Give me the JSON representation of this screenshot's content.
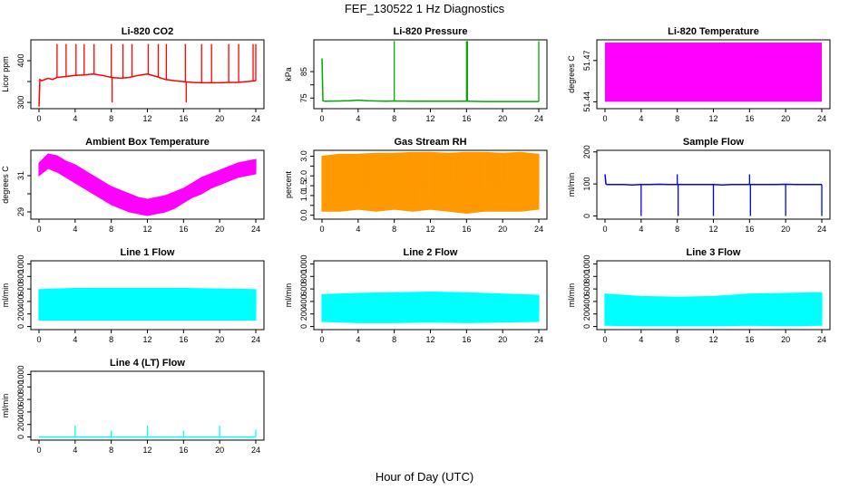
{
  "figure": {
    "title": "FEF_130522  1 Hz Diagnostics",
    "xlabel": "Hour of Day (UTC)"
  },
  "chart_data": [
    {
      "id": "co2",
      "type": "line",
      "title": "Li-820 CO2",
      "ylabel": "Licor ppm",
      "color": "#ff0000",
      "xlim": [
        0,
        24
      ],
      "ylim": [
        285,
        450
      ],
      "xticks": [
        0,
        4,
        8,
        12,
        16,
        20,
        24
      ],
      "yticks": [
        300,
        350,
        400
      ],
      "yticklabels": [
        "300",
        "",
        "400"
      ],
      "series": [
        {
          "x": [
            0,
            0.1,
            0.3,
            1,
            1.5,
            2,
            3,
            4,
            5,
            6,
            7,
            8,
            9,
            10,
            11,
            12,
            13,
            14,
            15,
            16,
            17,
            18,
            19,
            20,
            21,
            22,
            23,
            24
          ],
          "y": [
            290,
            355,
            352,
            358,
            355,
            360,
            362,
            365,
            366,
            368,
            365,
            360,
            358,
            360,
            365,
            368,
            362,
            355,
            352,
            350,
            348,
            347,
            347,
            347,
            348,
            348,
            350,
            352
          ]
        }
      ],
      "spikes": [
        {
          "x": 2.0,
          "y": 440
        },
        {
          "x": 3.0,
          "y": 440
        },
        {
          "x": 4.1,
          "y": 440
        },
        {
          "x": 5.0,
          "y": 440
        },
        {
          "x": 6.1,
          "y": 440
        },
        {
          "x": 8.0,
          "y": 440
        },
        {
          "x": 8.1,
          "y": 300
        },
        {
          "x": 9.3,
          "y": 440
        },
        {
          "x": 10.3,
          "y": 440
        },
        {
          "x": 12.1,
          "y": 440
        },
        {
          "x": 13.2,
          "y": 440
        },
        {
          "x": 14.1,
          "y": 440
        },
        {
          "x": 16.2,
          "y": 440
        },
        {
          "x": 16.3,
          "y": 300
        },
        {
          "x": 18.0,
          "y": 440
        },
        {
          "x": 19.1,
          "y": 440
        },
        {
          "x": 21.0,
          "y": 440
        },
        {
          "x": 22.1,
          "y": 440
        },
        {
          "x": 23.7,
          "y": 440
        },
        {
          "x": 24.0,
          "y": 440
        }
      ]
    },
    {
      "id": "pressure",
      "type": "line",
      "title": "Li-820 Pressure",
      "ylabel": "kPa",
      "color": "#00aa00",
      "xlim": [
        0,
        24
      ],
      "ylim": [
        71,
        97
      ],
      "xticks": [
        0,
        4,
        8,
        12,
        16,
        20,
        24
      ],
      "yticks": [
        75,
        80,
        85
      ],
      "yticklabels": [
        "75",
        "",
        "85"
      ],
      "series": [
        {
          "x": [
            0,
            0.1,
            0.3,
            2,
            3,
            4,
            5,
            6,
            7,
            8,
            10,
            12,
            14,
            16,
            18,
            20,
            22,
            24
          ],
          "y": [
            90,
            74,
            73.8,
            73.9,
            74.0,
            74.2,
            74.0,
            73.9,
            73.8,
            73.9,
            73.8,
            73.8,
            73.8,
            73.8,
            73.7,
            73.7,
            73.7,
            73.7
          ]
        }
      ],
      "spikes": [
        {
          "x": 8.0,
          "y": 96.5
        },
        {
          "x": 16.0,
          "y": 96.5
        },
        {
          "x": 16.1,
          "y": 96.5
        },
        {
          "x": 24.0,
          "y": 96.5
        }
      ]
    },
    {
      "id": "licor_temp",
      "type": "area",
      "title": "Li-820 Temperature",
      "ylabel": "degrees C",
      "color": "#ff00ff",
      "xlim": [
        0,
        24
      ],
      "ylim": [
        51.435,
        51.485
      ],
      "xticks": [
        0,
        4,
        8,
        12,
        16,
        20,
        24
      ],
      "yticks": [
        51.44,
        51.47
      ],
      "yticklabels": [
        "51.44",
        "51.47"
      ],
      "band": {
        "x0": 0,
        "x1": 24,
        "ymin": 51.44,
        "ymax": 51.483
      }
    },
    {
      "id": "box_temp",
      "type": "area",
      "title": "Ambient Box Temperature",
      "ylabel": "degrees C",
      "color": "#ff00ff",
      "xlim": [
        0,
        24
      ],
      "ylim": [
        28.6,
        32.4
      ],
      "xticks": [
        0,
        4,
        8,
        12,
        16,
        20,
        24
      ],
      "yticks": [
        29,
        30,
        31
      ],
      "yticklabels": [
        "29",
        "",
        "31"
      ],
      "x": [
        0,
        1,
        2,
        3,
        4,
        5,
        6,
        7,
        8,
        9,
        10,
        11,
        12,
        13,
        14,
        15,
        16,
        17,
        18,
        19,
        20,
        21,
        22,
        23,
        24
      ],
      "ymax": [
        31.7,
        32.2,
        32.1,
        31.8,
        31.6,
        31.3,
        31.0,
        30.7,
        30.4,
        30.2,
        30.0,
        29.8,
        29.7,
        29.8,
        29.9,
        30.1,
        30.3,
        30.6,
        30.9,
        31.1,
        31.3,
        31.5,
        31.7,
        31.8,
        31.9
      ],
      "ymin": [
        31.0,
        31.4,
        31.2,
        30.9,
        30.6,
        30.3,
        30.0,
        29.7,
        29.4,
        29.2,
        29.0,
        28.9,
        28.8,
        28.9,
        29.0,
        29.2,
        29.5,
        29.8,
        30.0,
        30.3,
        30.5,
        30.7,
        30.9,
        31.0,
        31.1
      ]
    },
    {
      "id": "rh",
      "type": "area",
      "title": "Gas Stream RH",
      "ylabel": "percent",
      "color": "#ff9900",
      "xlim": [
        0,
        24
      ],
      "ylim": [
        -0.2,
        3.3
      ],
      "xticks": [
        0,
        4,
        8,
        12,
        16,
        20,
        24
      ],
      "yticks": [
        0,
        0.5,
        1,
        1.5,
        2,
        2.5,
        3
      ],
      "yticklabels": [
        "0.0",
        "",
        "1.0",
        "1.5",
        "2.0",
        "",
        "3.0"
      ],
      "x": [
        0,
        2,
        4,
        6,
        8,
        10,
        12,
        14,
        16,
        18,
        20,
        22,
        24
      ],
      "ymax": [
        3.0,
        3.1,
        3.1,
        3.15,
        3.15,
        3.2,
        3.2,
        3.15,
        3.2,
        3.2,
        3.15,
        3.2,
        3.1
      ],
      "ymin": [
        0.2,
        0.2,
        0.3,
        0.2,
        0.3,
        0.2,
        0.3,
        0.2,
        0.1,
        0.2,
        0.2,
        0.2,
        0.3
      ]
    },
    {
      "id": "sample_flow",
      "type": "line",
      "title": "Sample Flow",
      "ylabel": "ml/min",
      "color": "#0000ff",
      "xlim": [
        0,
        24
      ],
      "ylim": [
        -10,
        205
      ],
      "xticks": [
        0,
        4,
        8,
        12,
        16,
        20,
        24
      ],
      "yticks": [
        0,
        100,
        200
      ],
      "yticklabels": [
        "0",
        "100",
        "200"
      ],
      "series": [
        {
          "x": [
            0,
            0.1,
            0.2,
            1,
            2,
            3,
            4,
            5,
            6,
            7,
            8,
            9,
            10,
            11,
            12,
            13,
            14,
            15,
            16,
            17,
            18,
            19,
            20,
            21,
            22,
            23,
            24
          ],
          "y": [
            130,
            100,
            98,
            98,
            98,
            97,
            98,
            98,
            99,
            98,
            98,
            98,
            98,
            98,
            98,
            97,
            98,
            98,
            98,
            98,
            98,
            98,
            99,
            98,
            98,
            98,
            98
          ]
        }
      ],
      "spikes": [
        {
          "x": 4.0,
          "y": 0
        },
        {
          "x": 8.0,
          "y": 130
        },
        {
          "x": 8.1,
          "y": 0
        },
        {
          "x": 12.0,
          "y": 0
        },
        {
          "x": 16.0,
          "y": 130
        },
        {
          "x": 16.1,
          "y": 0
        },
        {
          "x": 20.0,
          "y": 0
        },
        {
          "x": 24.0,
          "y": 0
        }
      ]
    },
    {
      "id": "line1",
      "type": "area",
      "title": "Line 1 Flow",
      "ylabel": "ml/min",
      "color": "#00ffff",
      "xlim": [
        0,
        24
      ],
      "ylim": [
        -50,
        1050
      ],
      "xticks": [
        0,
        4,
        8,
        12,
        16,
        20,
        24
      ],
      "yticks": [
        0,
        200,
        400,
        600,
        800,
        1000
      ],
      "yticklabels": [
        "0",
        "200",
        "400",
        "600",
        "800",
        "1000"
      ],
      "x": [
        0,
        4,
        8,
        12,
        16,
        20,
        24
      ],
      "ymax": [
        590,
        610,
        610,
        610,
        610,
        600,
        590
      ],
      "ymin": [
        100,
        100,
        100,
        100,
        100,
        100,
        100
      ]
    },
    {
      "id": "line2",
      "type": "area",
      "title": "Line 2 Flow",
      "ylabel": "ml/min",
      "color": "#00ffff",
      "xlim": [
        0,
        24
      ],
      "ylim": [
        -50,
        1050
      ],
      "xticks": [
        0,
        4,
        8,
        12,
        16,
        20,
        24
      ],
      "yticks": [
        0,
        200,
        400,
        600,
        800,
        1000
      ],
      "yticklabels": [
        "0",
        "200",
        "400",
        "600",
        "800",
        "1000"
      ],
      "x": [
        0,
        4,
        8,
        12,
        16,
        20,
        24
      ],
      "ymax": [
        510,
        530,
        540,
        550,
        540,
        520,
        500
      ],
      "ymin": [
        80,
        60,
        60,
        70,
        60,
        70,
        80
      ]
    },
    {
      "id": "line3",
      "type": "area",
      "title": "Line 3 Flow",
      "ylabel": "ml/min",
      "color": "#00ffff",
      "xlim": [
        0,
        24
      ],
      "ylim": [
        -50,
        1050
      ],
      "xticks": [
        0,
        4,
        8,
        12,
        16,
        20,
        24
      ],
      "yticks": [
        0,
        200,
        400,
        600,
        800,
        1000
      ],
      "yticklabels": [
        "0",
        "200",
        "400",
        "600",
        "800",
        "1000"
      ],
      "x": [
        0,
        4,
        8,
        12,
        16,
        20,
        24
      ],
      "ymax": [
        520,
        480,
        470,
        480,
        520,
        530,
        540
      ],
      "ymin": [
        20,
        10,
        10,
        10,
        20,
        10,
        20
      ]
    },
    {
      "id": "line4",
      "type": "line",
      "title": "Line 4 (LT) Flow",
      "ylabel": "ml/min",
      "color": "#00ffff",
      "xlim": [
        0,
        24
      ],
      "ylim": [
        -50,
        1050
      ],
      "xticks": [
        0,
        4,
        8,
        12,
        16,
        20,
        24
      ],
      "yticks": [
        0,
        200,
        400,
        600,
        800,
        1000
      ],
      "yticklabels": [
        "0",
        "200",
        "400",
        "600",
        "800",
        "1000"
      ],
      "series": [
        {
          "x": [
            0,
            24
          ],
          "y": [
            0,
            0
          ]
        }
      ],
      "spikes": [
        {
          "x": 4.0,
          "y": 180
        },
        {
          "x": 8.0,
          "y": 100
        },
        {
          "x": 12.0,
          "y": 180
        },
        {
          "x": 16.0,
          "y": 100
        },
        {
          "x": 20.0,
          "y": 180
        },
        {
          "x": 24.0,
          "y": 120
        }
      ]
    }
  ]
}
